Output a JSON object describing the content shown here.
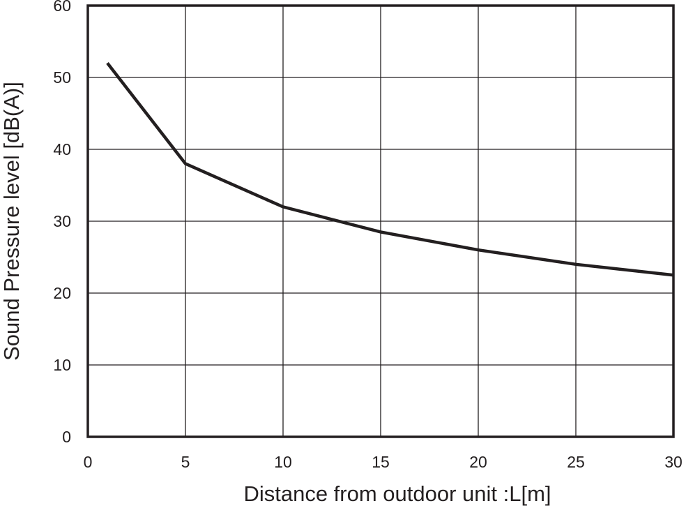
{
  "chart_data": {
    "type": "line",
    "title": "",
    "xlabel": "Distance from outdoor unit  :L[m]",
    "ylabel": "Sound Pressure level [dB(A)]",
    "xlim": [
      0,
      30
    ],
    "ylim": [
      0,
      60
    ],
    "xticks": [
      0,
      5,
      10,
      15,
      20,
      25,
      30
    ],
    "yticks": [
      0,
      10,
      20,
      30,
      40,
      50,
      60
    ],
    "grid": true,
    "series": [
      {
        "x": [
          1,
          5,
          10,
          15,
          20,
          25,
          30
        ],
        "y": [
          52,
          38,
          32,
          28.5,
          26,
          24,
          22.5
        ],
        "color": "#231f20"
      }
    ]
  }
}
